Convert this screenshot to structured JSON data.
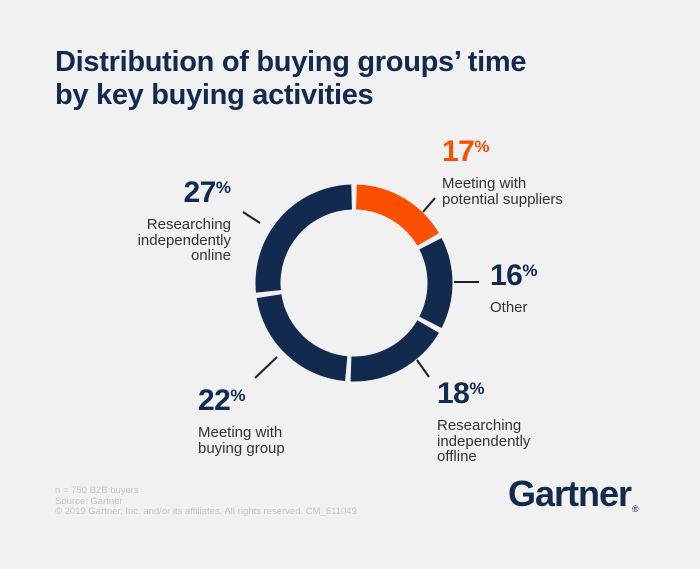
{
  "title": "Distribution of buying groups’ time\nby key buying activities",
  "chart_data": {
    "type": "pie",
    "variant": "donut",
    "title": "Distribution of buying groups’ time by key buying activities",
    "unit": "%",
    "total": 100,
    "order": "clockwise from 12 o'clock",
    "percent_symbol": "%",
    "segments": [
      {
        "label": "Meeting with\npotential suppliers",
        "value": 17,
        "color": "#FA4F00"
      },
      {
        "label": "Other",
        "value": 16,
        "color": "#112A4D"
      },
      {
        "label": "Researching\nindependently\noffline",
        "value": 18,
        "color": "#112A4D"
      },
      {
        "label": "Meeting with\nbuying group",
        "value": 22,
        "color": "#112A4D"
      },
      {
        "label": "Researching\nindependently\nonline",
        "value": 27,
        "color": "#112A4D"
      }
    ]
  },
  "footer": {
    "note": "n = 750 B2B buyers",
    "source": "Source: Gartner",
    "copyright": "© 2019 Gartner, Inc. and/or its affiliates. All rights reserved. CM_611049"
  },
  "logo": {
    "text": "Gartner",
    "registered": "®"
  },
  "colors": {
    "background": "#F1F1F1",
    "navy": "#112A4D",
    "orange": "#FA4F00",
    "label_text": "#333333",
    "leader_line": "#1F1F1F",
    "footer_text": "#C5C5C5"
  }
}
